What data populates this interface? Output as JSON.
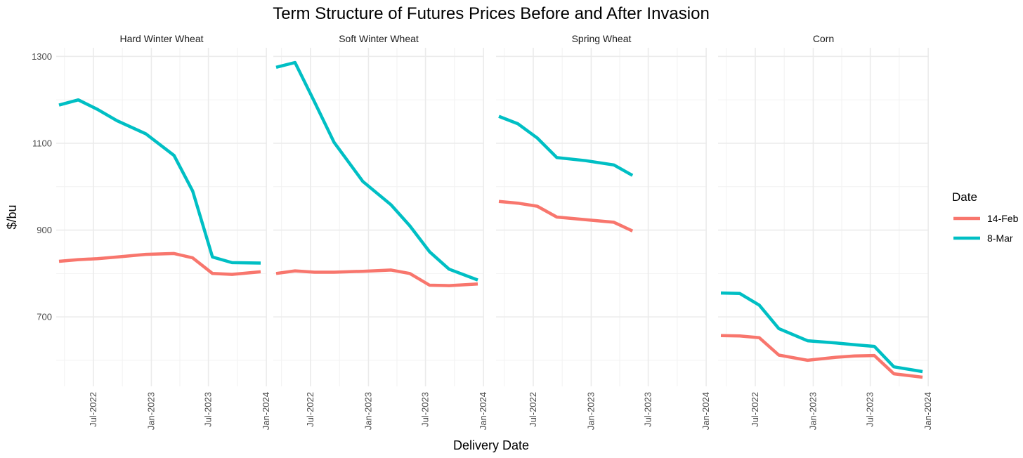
{
  "chart_data": {
    "type": "line",
    "title": "Term Structure of Futures Prices Before and After Invasion",
    "xlabel": "Delivery Date",
    "ylabel": "$/bu",
    "y_ticks": [
      700,
      900,
      1100,
      1300
    ],
    "ylim": [
      540,
      1320
    ],
    "x_ticks": [
      "Jul-2022",
      "Jan-2023",
      "Jul-2023",
      "Jan-2024"
    ],
    "x_tick_dates": [
      "2022-07-01",
      "2023-01-01",
      "2023-07-01",
      "2024-01-01"
    ],
    "xlim": [
      "2022-03-05",
      "2024-01-03"
    ],
    "grid": true,
    "legend": {
      "title": "Date",
      "position": "right",
      "entries": [
        {
          "label": "14-Feb",
          "color": "#F8766D"
        },
        {
          "label": "8-Mar",
          "color": "#00BFC4"
        }
      ]
    },
    "facets": [
      {
        "name": "Hard Winter Wheat",
        "series": [
          {
            "name": "14-Feb",
            "x": [
              "2022-03-14",
              "2022-05-14",
              "2022-07-14",
              "2022-09-14",
              "2022-12-14",
              "2023-03-14",
              "2023-05-12",
              "2023-07-14",
              "2023-09-14",
              "2023-12-14"
            ],
            "y": [
              828,
              832,
              834,
              838,
              844,
              846,
              836,
              800,
              798,
              804
            ]
          },
          {
            "name": "8-Mar",
            "x": [
              "2022-03-14",
              "2022-05-14",
              "2022-07-14",
              "2022-09-14",
              "2022-12-14",
              "2023-03-14",
              "2023-05-12",
              "2023-07-14",
              "2023-09-14",
              "2023-12-14"
            ],
            "y": [
              1188,
              1200,
              1178,
              1152,
              1122,
              1072,
              990,
              838,
              825,
              824
            ]
          }
        ]
      },
      {
        "name": "Soft Winter Wheat",
        "series": [
          {
            "name": "14-Feb",
            "x": [
              "2022-03-14",
              "2022-05-13",
              "2022-07-14",
              "2022-09-14",
              "2022-12-14",
              "2023-03-14",
              "2023-05-12",
              "2023-07-14",
              "2023-09-14",
              "2023-12-14"
            ],
            "y": [
              800,
              806,
              803,
              803,
              805,
              808,
              800,
              773,
              772,
              776
            ]
          },
          {
            "name": "8-Mar",
            "x": [
              "2022-03-14",
              "2022-05-13",
              "2022-07-14",
              "2022-09-14",
              "2022-12-14",
              "2023-03-14",
              "2023-05-12",
              "2023-07-14",
              "2023-09-14",
              "2023-12-14"
            ],
            "y": [
              1275,
              1286,
              1195,
              1102,
              1012,
              958,
              910,
              850,
              810,
              785
            ]
          }
        ]
      },
      {
        "name": "Spring Wheat",
        "series": [
          {
            "name": "14-Feb",
            "x": [
              "2022-03-14",
              "2022-05-13",
              "2022-07-14",
              "2022-09-14",
              "2022-12-14",
              "2023-03-14",
              "2023-05-12"
            ],
            "y": [
              966,
              962,
              955,
              930,
              924,
              918,
              898
            ]
          },
          {
            "name": "8-Mar",
            "x": [
              "2022-03-14",
              "2022-05-13",
              "2022-07-14",
              "2022-09-14",
              "2022-12-14",
              "2023-03-14",
              "2023-05-12"
            ],
            "y": [
              1162,
              1145,
              1112,
              1067,
              1060,
              1050,
              1026
            ]
          }
        ]
      },
      {
        "name": "Corn",
        "series": [
          {
            "name": "14-Feb",
            "x": [
              "2022-03-14",
              "2022-05-13",
              "2022-07-14",
              "2022-09-14",
              "2022-12-14",
              "2023-03-14",
              "2023-05-12",
              "2023-07-14",
              "2023-09-14",
              "2023-12-14"
            ],
            "y": [
              657,
              656,
              652,
              612,
              600,
              607,
              610,
              611,
              569,
              561
            ]
          },
          {
            "name": "8-Mar",
            "x": [
              "2022-03-14",
              "2022-05-13",
              "2022-07-14",
              "2022-09-14",
              "2022-12-14",
              "2023-03-14",
              "2023-05-12",
              "2023-07-14",
              "2023-09-14",
              "2023-12-14"
            ],
            "y": [
              755,
              754,
              727,
              673,
              645,
              640,
              636,
              632,
              585,
              574
            ]
          }
        ]
      }
    ]
  }
}
